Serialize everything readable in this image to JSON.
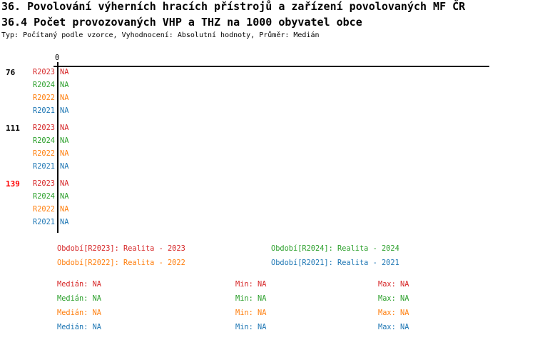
{
  "title": "36. Povolování výherních hracích přístrojů a zařízení povolovaných MF ČR",
  "subtitle": "36.4 Počet provozovaných VHP a THZ na 1000 obyvatel obce",
  "info": "Typ: Počítaný podle vzorce, Vyhodnocení: Absolutní hodnoty, Průměr: Medián",
  "colors": {
    "R2023": "#d62728",
    "R2024": "#2ca02c",
    "R2022": "#ff7f0e",
    "R2021": "#1f77b4",
    "highlight": "#ff0000"
  },
  "chart_data": {
    "type": "bar",
    "orientation": "horizontal",
    "x_ticks": [
      "0"
    ],
    "groups": [
      {
        "label": "76",
        "highlight": false,
        "bars": [
          {
            "series": "R2023",
            "value": "NA"
          },
          {
            "series": "R2024",
            "value": "NA"
          },
          {
            "series": "R2022",
            "value": "NA"
          },
          {
            "series": "R2021",
            "value": "NA"
          }
        ]
      },
      {
        "label": "111",
        "highlight": false,
        "bars": [
          {
            "series": "R2023",
            "value": "NA"
          },
          {
            "series": "R2024",
            "value": "NA"
          },
          {
            "series": "R2022",
            "value": "NA"
          },
          {
            "series": "R2021",
            "value": "NA"
          }
        ]
      },
      {
        "label": "139",
        "highlight": true,
        "bars": [
          {
            "series": "R2023",
            "value": "NA"
          },
          {
            "series": "R2024",
            "value": "NA"
          },
          {
            "series": "R2022",
            "value": "NA"
          },
          {
            "series": "R2021",
            "value": "NA"
          }
        ]
      }
    ],
    "legend": [
      {
        "series": "R2023",
        "text": "Období[R2023]: Realita - 2023"
      },
      {
        "series": "R2024",
        "text": "Období[R2024]: Realita - 2024"
      },
      {
        "series": "R2022",
        "text": "Období[R2022]: Realita - 2022"
      },
      {
        "series": "R2021",
        "text": "Období[R2021]: Realita - 2021"
      }
    ],
    "stats": [
      {
        "series": "R2023",
        "median": "Medián: NA",
        "min": "Min: NA",
        "max": "Max: NA"
      },
      {
        "series": "R2024",
        "median": "Medián: NA",
        "min": "Min: NA",
        "max": "Max: NA"
      },
      {
        "series": "R2022",
        "median": "Medián: NA",
        "min": "Min: NA",
        "max": "Max: NA"
      },
      {
        "series": "R2021",
        "median": "Medián: NA",
        "min": "Min: NA",
        "max": "Max: NA"
      }
    ]
  }
}
